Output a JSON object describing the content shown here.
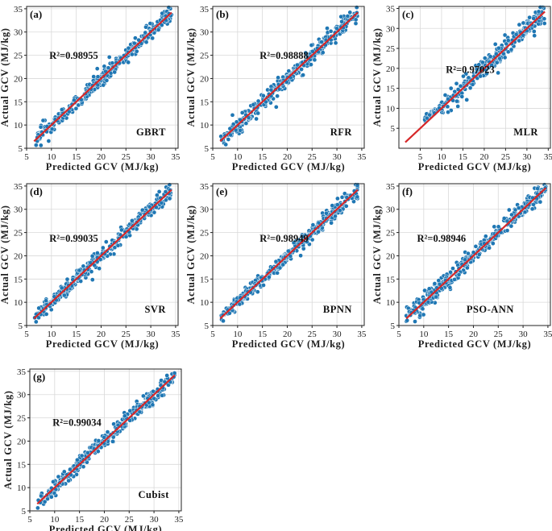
{
  "figure": {
    "point_color": "#1f77b4",
    "line_color": "#d62728"
  },
  "chart_data": [
    {
      "type": "scatter",
      "panel_label": "(a)",
      "model": "GBRT",
      "r2_label": "R²=0.98955",
      "xlabel": "Predicted GCV (MJ/kg)",
      "ylabel": "Actual GCV (MJ/kg)",
      "xlim": [
        5,
        35.5
      ],
      "ylim": [
        5,
        35.5
      ],
      "xticks": [
        5,
        10,
        15,
        20,
        25,
        30,
        35
      ],
      "yticks": [
        5,
        10,
        15,
        20,
        25,
        30,
        35
      ],
      "fit_line": {
        "x": [
          6.5,
          34.2
        ],
        "y": [
          6.5,
          34.2
        ]
      },
      "grid": true,
      "spread": 1.1,
      "seed": 11
    },
    {
      "type": "scatter",
      "panel_label": "(b)",
      "model": "RFR",
      "r2_label": "R²=0.98888",
      "xlabel": "Predicted GCV (MJ/kg)",
      "ylabel": "Actual GCV (MJ/kg)",
      "xlim": [
        5,
        35.5
      ],
      "ylim": [
        5,
        35.5
      ],
      "xticks": [
        5,
        10,
        15,
        20,
        25,
        30,
        35
      ],
      "yticks": [
        5,
        10,
        15,
        20,
        25,
        30,
        35
      ],
      "fit_line": {
        "x": [
          6.5,
          34.2
        ],
        "y": [
          6.5,
          34.2
        ]
      },
      "grid": true,
      "spread": 1.15,
      "seed": 23
    },
    {
      "type": "scatter",
      "panel_label": "(c)",
      "model": "MLR",
      "r2_label": "R²=0.97023",
      "xlabel": "Predicted GCV (MJ/kg)",
      "ylabel": "Actual GCV (MJ/kg)",
      "xlim": [
        0,
        35.5
      ],
      "ylim": [
        0,
        35.5
      ],
      "xticks": [
        5,
        10,
        15,
        20,
        25,
        30,
        35
      ],
      "yticks": [
        5,
        10,
        15,
        20,
        25,
        30,
        35
      ],
      "fit_line": {
        "x": [
          1.5,
          34.2
        ],
        "y": [
          1.5,
          34.2
        ]
      },
      "grid": true,
      "spread": 1.6,
      "seed": 37
    },
    {
      "type": "scatter",
      "panel_label": "(d)",
      "model": "SVR",
      "r2_label": "R²=0.99035",
      "xlabel": "Predicted GCV (MJ/kg)",
      "ylabel": "Actual GCV (MJ/kg)",
      "xlim": [
        5,
        35.5
      ],
      "ylim": [
        5,
        35.5
      ],
      "xticks": [
        5,
        10,
        15,
        20,
        25,
        30,
        35
      ],
      "yticks": [
        5,
        10,
        15,
        20,
        25,
        30,
        35
      ],
      "fit_line": {
        "x": [
          6.5,
          34.2
        ],
        "y": [
          6.5,
          34.2
        ]
      },
      "grid": true,
      "spread": 1.05,
      "seed": 41
    },
    {
      "type": "scatter",
      "panel_label": "(e)",
      "model": "BPNN",
      "r2_label": "R²=0.98949",
      "xlabel": "Predicted GCV (MJ/kg)",
      "ylabel": "Actual GCV (MJ/kg)",
      "xlim": [
        5,
        35.5
      ],
      "ylim": [
        5,
        35.5
      ],
      "xticks": [
        5,
        10,
        15,
        20,
        25,
        30,
        35
      ],
      "yticks": [
        5,
        10,
        15,
        20,
        25,
        30,
        35
      ],
      "fit_line": {
        "x": [
          6.5,
          34.2
        ],
        "y": [
          6.5,
          34.2
        ]
      },
      "grid": true,
      "spread": 1.1,
      "seed": 53
    },
    {
      "type": "scatter",
      "panel_label": "(f)",
      "model": "PSO-ANN",
      "r2_label": "R²=0.98946",
      "xlabel": "Predicted GCV (MJ/kg)",
      "ylabel": "Actual GCV (MJ/kg)",
      "xlim": [
        5,
        35.5
      ],
      "ylim": [
        5,
        35.5
      ],
      "xticks": [
        5,
        10,
        15,
        20,
        25,
        30,
        35
      ],
      "yticks": [
        5,
        10,
        15,
        20,
        25,
        30,
        35
      ],
      "fit_line": {
        "x": [
          6.5,
          34.6
        ],
        "y": [
          6.5,
          34.6
        ]
      },
      "grid": true,
      "spread": 1.1,
      "seed": 67
    },
    {
      "type": "scatter",
      "panel_label": "(g)",
      "model": "Cubist",
      "r2_label": "R²=0.99034",
      "xlabel": "Predicted GCV (MJ/kg)",
      "ylabel": "Actual GCV (MJ/kg)",
      "xlim": [
        5,
        35.5
      ],
      "ylim": [
        5,
        35.5
      ],
      "xticks": [
        5,
        10,
        15,
        20,
        25,
        30,
        35
      ],
      "yticks": [
        5,
        10,
        15,
        20,
        25,
        30,
        35
      ],
      "fit_line": {
        "x": [
          6.5,
          34.2
        ],
        "y": [
          6.5,
          34.2
        ]
      },
      "grid": true,
      "spread": 1.05,
      "seed": 79
    }
  ]
}
